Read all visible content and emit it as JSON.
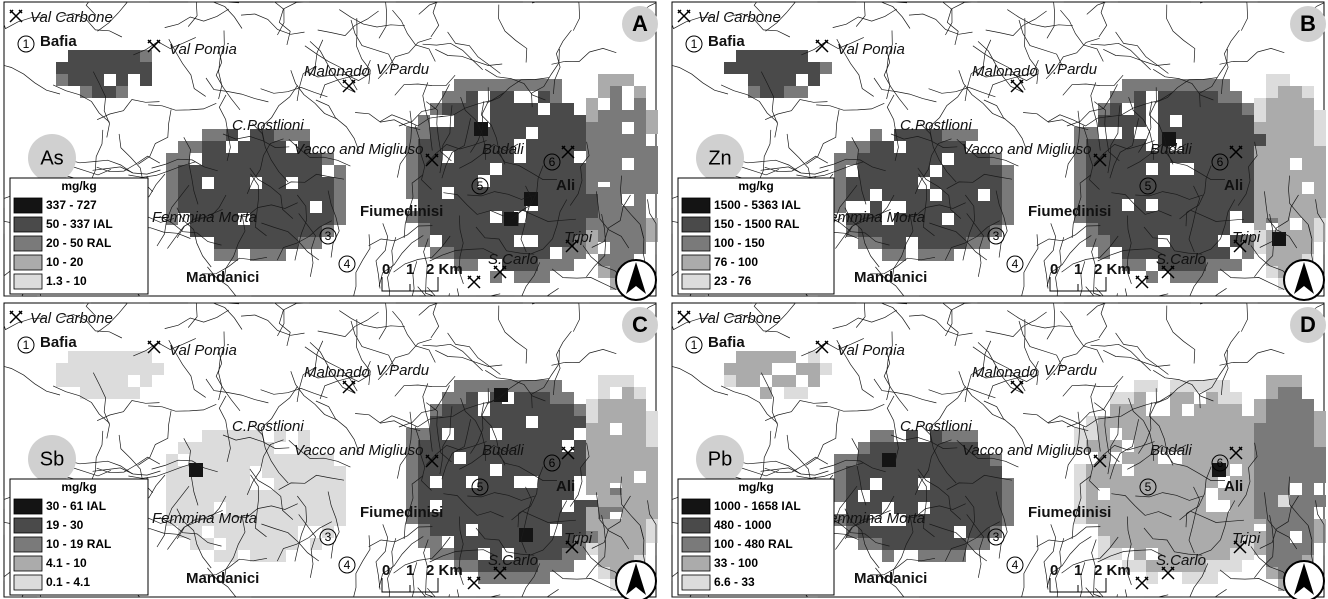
{
  "places": [
    "Val Carbone",
    "Bafia",
    "Val Pomia",
    "Malonado",
    "V.Pardu",
    "C.Postlioni",
    "Vacco and Migliuso",
    "Budali",
    "Ali",
    "Fiumedinisi",
    "Femmina Morta",
    "Mandanici",
    "S.Carlo",
    "Tripi"
  ],
  "site_numbers": [
    "1",
    "3",
    "4",
    "5",
    "6"
  ],
  "scale": [
    "0",
    "1",
    "2 Km"
  ],
  "panels": [
    {
      "letter": "A",
      "element": "As",
      "legend": {
        "title": "mg/kg",
        "entries": [
          "337 - 727",
          "50 - 337 IAL",
          "20 - 50   RAL",
          "10 - 20",
          "1.3 - 10"
        ]
      }
    },
    {
      "letter": "B",
      "element": "Zn",
      "legend": {
        "title": "mg/kg",
        "entries": [
          "1500 - 5363 IAL",
          "150 - 1500 RAL",
          "100 - 150",
          "76 - 100",
          "23 - 76"
        ]
      }
    },
    {
      "letter": "C",
      "element": "Sb",
      "legend": {
        "title": "mg/kg",
        "entries": [
          "30 - 61 IAL",
          "19 - 30",
          "10 - 19 RAL",
          "4.1 - 10",
          "0.1 - 4.1"
        ]
      }
    },
    {
      "letter": "D",
      "element": "Pb",
      "legend": {
        "title": "mg/kg",
        "entries": [
          "1000 - 1658 IAL",
          "480 - 1000",
          "100 - 480 RAL",
          "33 - 100",
          "6.6 - 33"
        ]
      }
    }
  ]
}
